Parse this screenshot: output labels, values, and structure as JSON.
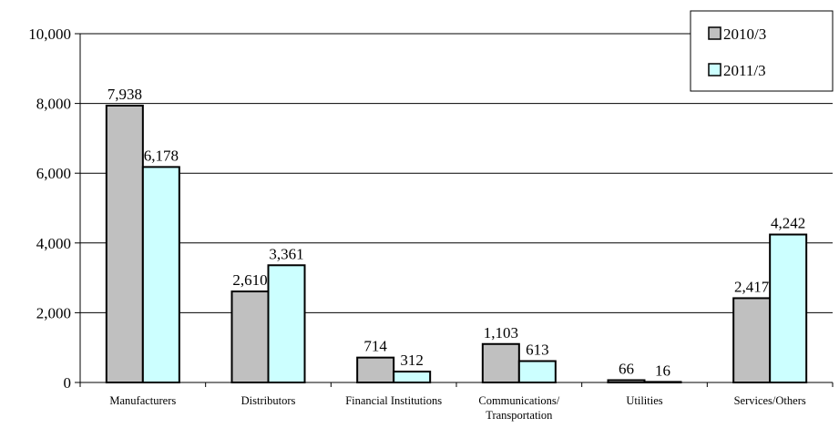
{
  "chart_data": {
    "type": "bar",
    "categories": [
      [
        "Manufacturers"
      ],
      [
        "Distributors"
      ],
      [
        "Financial Institutions"
      ],
      [
        "Communications/",
        "Transportation"
      ],
      [
        "Utilities"
      ],
      [
        "Services/Others"
      ]
    ],
    "series": [
      {
        "name": "2010/3",
        "color": "#c0c0c0",
        "values": [
          7938,
          2610,
          714,
          1103,
          66,
          2417
        ],
        "labels": [
          "7,938",
          "2,610",
          "714",
          "1,103",
          "66",
          "2,417"
        ]
      },
      {
        "name": "2011/3",
        "color": "#ccffff",
        "values": [
          6178,
          3361,
          312,
          613,
          16,
          4242
        ],
        "labels": [
          "6,178",
          "3,361",
          "312",
          "613",
          "16",
          "4,242"
        ]
      }
    ],
    "ylim": [
      0,
      10000
    ],
    "yticks": [
      0,
      2000,
      4000,
      6000,
      8000,
      10000
    ],
    "yticklabels": [
      "0",
      "2,000",
      "4,000",
      "6,000",
      "8,000",
      "10,000"
    ],
    "grid": true,
    "legend": "top-right"
  }
}
